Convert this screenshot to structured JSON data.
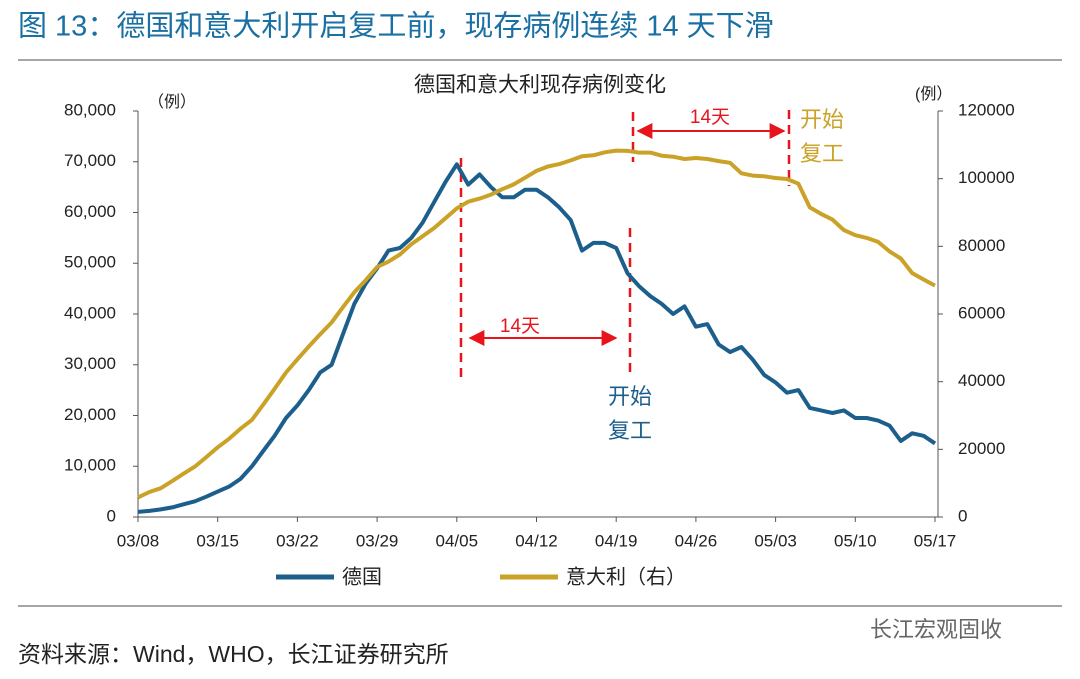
{
  "header": {
    "title": "图 13：德国和意大利开启复工前，现存病例连续 14 天下滑",
    "source": "资料来源：Wind，WHO，长江证券研究所",
    "watermark": "长江宏观固收"
  },
  "chart_data": {
    "type": "line",
    "title": "德国和意大利现存病例变化",
    "y_unit": "（例）",
    "y2_unit": "(例）",
    "categories": [
      "03/08",
      null,
      null,
      null,
      null,
      null,
      null,
      "03/15",
      null,
      null,
      null,
      null,
      null,
      null,
      "03/22",
      null,
      null,
      null,
      null,
      null,
      null,
      "03/29",
      null,
      null,
      null,
      null,
      null,
      null,
      "04/05",
      null,
      null,
      null,
      null,
      null,
      null,
      "04/12",
      null,
      null,
      null,
      null,
      null,
      null,
      "04/19",
      null,
      null,
      null,
      null,
      null,
      null,
      "04/26",
      null,
      null,
      null,
      null,
      null,
      null,
      "05/03",
      null,
      null,
      null,
      null,
      null,
      null,
      "05/10",
      null,
      null,
      null,
      null,
      null,
      null,
      "05/17"
    ],
    "series": [
      {
        "name": "德国",
        "color": "#1d5f8c",
        "values": [
          1000,
          1200,
          1500,
          1900,
          2500,
          3100,
          4000,
          5000,
          6000,
          7500,
          10000,
          13000,
          16000,
          19500,
          22000,
          25000,
          28500,
          30000,
          36000,
          42000,
          46000,
          49000,
          52500,
          53000,
          55000,
          58000,
          62000,
          66000,
          69500,
          65500,
          67500,
          65000,
          63000,
          63000,
          64500,
          64500,
          63000,
          61000,
          58500,
          52500,
          54000,
          54000,
          53000,
          48000,
          45500,
          43500,
          42000,
          40000,
          41500,
          37500,
          38000,
          34000,
          32500,
          33500,
          31000,
          28000,
          26500,
          24500,
          25000,
          21500,
          21000,
          20500,
          21000,
          19500,
          19500,
          19000,
          18000,
          15000,
          16500,
          16000,
          14500
        ]
      },
      {
        "name": "意大利（右）",
        "color": "#c9a227",
        "axis": "y2",
        "values": [
          5800,
          7400,
          8500,
          10600,
          12800,
          14900,
          17700,
          20600,
          23100,
          26100,
          28700,
          33200,
          37900,
          42700,
          46600,
          50400,
          54000,
          57500,
          62000,
          66400,
          70000,
          73900,
          75500,
          77600,
          80600,
          83000,
          85400,
          88300,
          91200,
          93200,
          94100,
          95300,
          96900,
          98300,
          100300,
          102300,
          103600,
          104300,
          105400,
          106600,
          106900,
          107800,
          108300,
          108200,
          107700,
          107700,
          106800,
          106500,
          105800,
          106100,
          105800,
          105200,
          104700,
          101600,
          100900,
          100700,
          100200,
          99900,
          98500,
          91500,
          89600,
          87900,
          84800,
          83300,
          82500,
          81300,
          78500,
          76400,
          72100,
          70200,
          68400
        ]
      }
    ],
    "ylim": [
      0,
      80000
    ],
    "yticks": [
      0,
      {
        "value": 10000,
        "label": "10,000"
      },
      {
        "value": 20000,
        "label": "20,000"
      },
      {
        "value": 30000,
        "label": "30,000"
      },
      {
        "value": 40000,
        "label": "40,000"
      },
      {
        "value": 50000,
        "label": "50,000"
      },
      {
        "value": 60000,
        "label": "60,000"
      },
      {
        "value": 70000,
        "label": "70,000"
      },
      {
        "value": 80000,
        "label": "80,000"
      }
    ],
    "y2lim": [
      0,
      120000
    ],
    "y2ticks": [
      0,
      20000,
      40000,
      60000,
      80000,
      100000,
      120000
    ],
    "annotations": [
      {
        "text": "14天",
        "color": "#e8141b"
      },
      {
        "text": "开始",
        "color": "#1d5f8c"
      },
      {
        "text": "复工",
        "color": "#1d5f8c"
      },
      {
        "text": "14天",
        "color": "#e8141b"
      },
      {
        "text": "开始",
        "color": "#c9a227"
      },
      {
        "text": "复工",
        "color": "#c9a227"
      }
    ]
  }
}
